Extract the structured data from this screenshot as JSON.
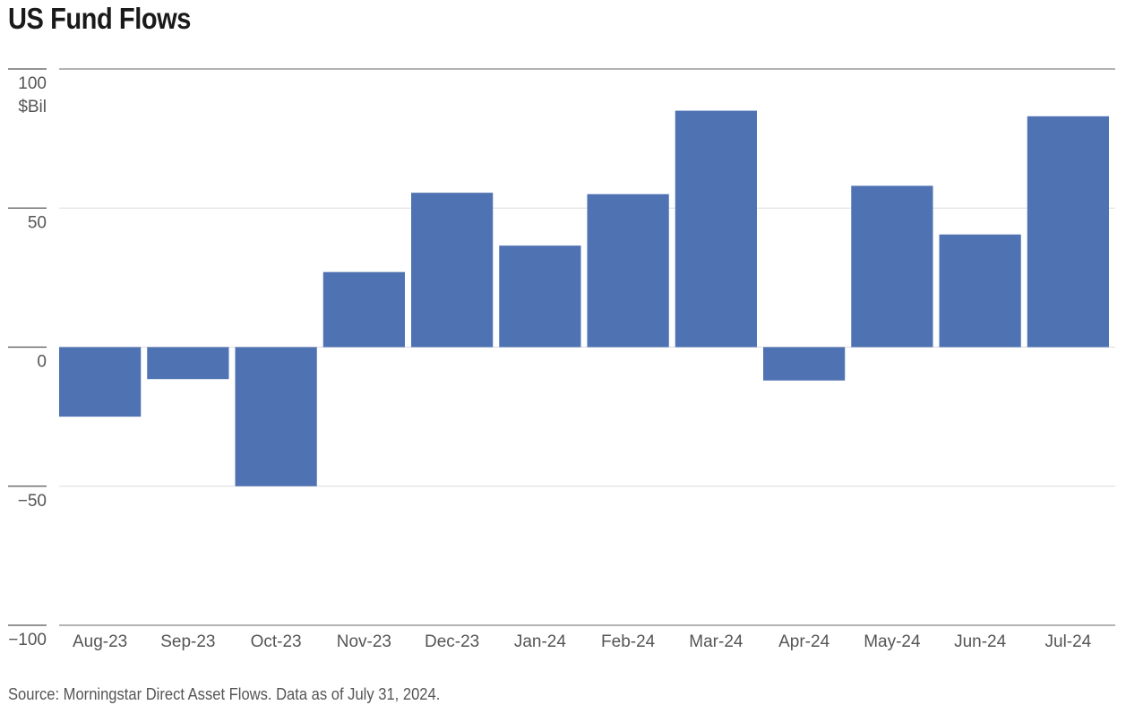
{
  "chart_data": {
    "type": "bar",
    "title": "US Fund Flows",
    "unit_label": "$Bil",
    "categories": [
      "Aug-23",
      "Sep-23",
      "Oct-23",
      "Nov-23",
      "Dec-23",
      "Jan-24",
      "Feb-24",
      "Mar-24",
      "Apr-24",
      "May-24",
      "Jun-24",
      "Jul-24"
    ],
    "values": [
      -25,
      -11.5,
      -50,
      27,
      55.5,
      36.5,
      55,
      85,
      -12,
      58,
      40.5,
      83
    ],
    "ylim": [
      -100,
      100
    ],
    "yticks": [
      100,
      50,
      0,
      -50,
      -100
    ],
    "ytick_labels": [
      "100",
      "50",
      "0",
      "−50",
      "−100"
    ],
    "grid": true,
    "bar_color": "#4f72b3",
    "source": "Source: Morningstar Direct Asset Flows. Data as of July 31, 2024."
  }
}
